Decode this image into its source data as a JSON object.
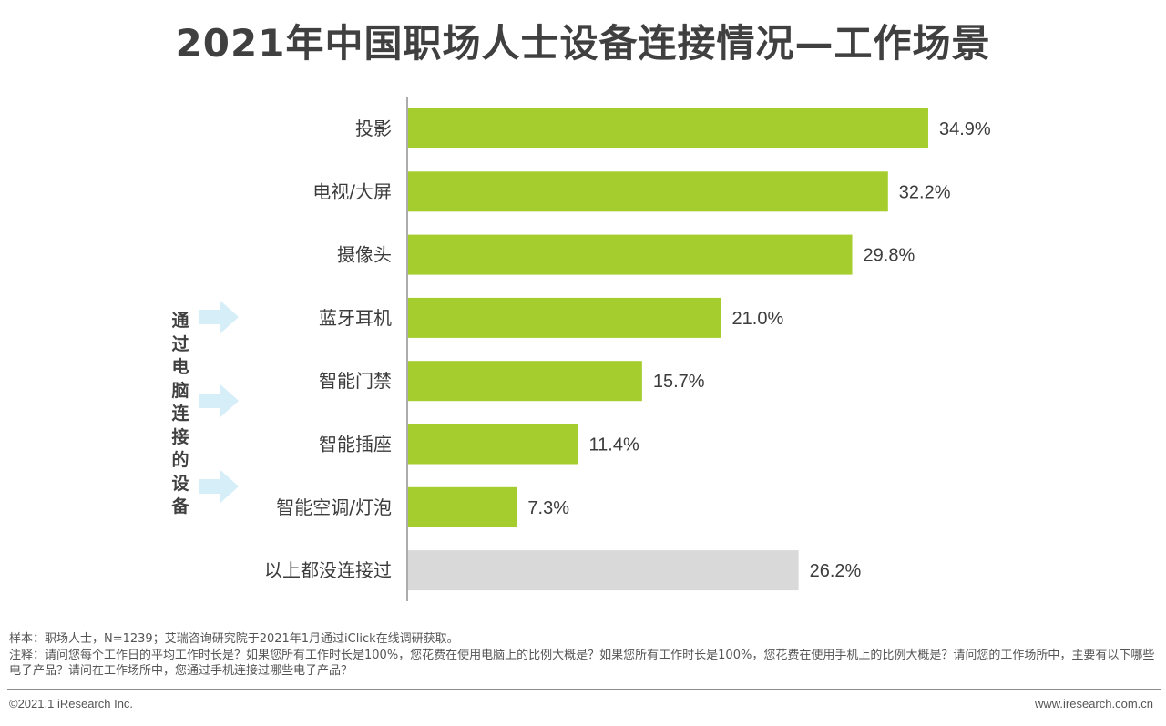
{
  "chart_data": {
    "type": "bar",
    "orientation": "horizontal",
    "title": "2021年中国职场人士设备连接情况—工作场景",
    "categories": [
      "投影",
      "电视/大屏",
      "摄像头",
      "蓝牙耳机",
      "智能门禁",
      "智能插座",
      "智能空调/灯泡",
      "以上都没连接过"
    ],
    "values": [
      34.9,
      32.2,
      29.8,
      21.0,
      15.7,
      11.4,
      7.3,
      26.2
    ],
    "value_labels": [
      "34.9%",
      "32.2%",
      "29.8%",
      "21.0%",
      "15.7%",
      "11.4%",
      "7.3%",
      "26.2%"
    ],
    "unit": "%",
    "xlim": [
      0,
      50
    ],
    "colors": [
      "#a5cd2e",
      "#a5cd2e",
      "#a5cd2e",
      "#a5cd2e",
      "#a5cd2e",
      "#a5cd2e",
      "#a5cd2e",
      "#d9d9d9"
    ],
    "side_label": "通过电脑连接的设备"
  },
  "footer": {
    "sample": "样本：职场人士，N=1239；艾瑞咨询研究院于2021年1月通过iClick在线调研获取。",
    "note": "注释：请问您每个工作日的平均工作时长是？如果您所有工作时长是100%，您花费在使用电脑上的比例大概是？如果您所有工作时长是100%，您花费在使用手机上的比例大概是？请问您的工作场所中，主要有以下哪些电子产品？请问在工作场所中，您通过手机连接过哪些电子产品？",
    "copyright": "©2021.1 iResearch Inc.",
    "website": "www.iresearch.com.cn"
  },
  "colors": {
    "bar_green": "#a5cd2e",
    "bar_gray": "#d9d9d9",
    "arrow": "#d6eef8"
  }
}
